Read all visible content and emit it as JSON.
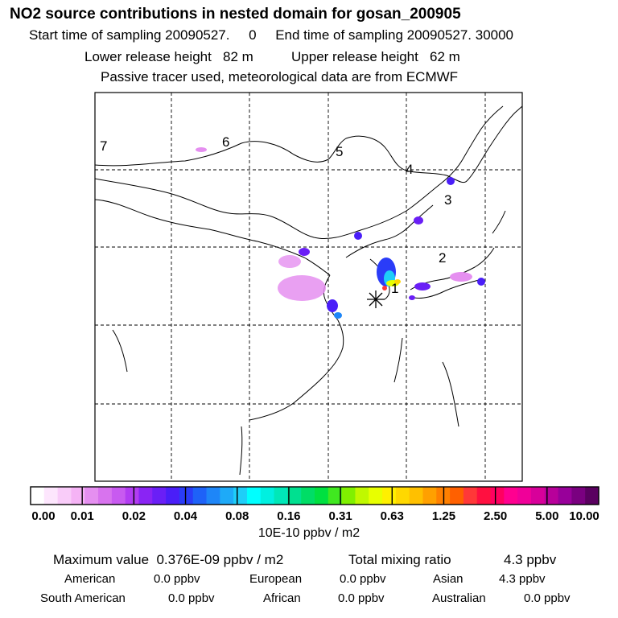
{
  "title": "NO2 source contributions in nested domain for gosan_200905",
  "sampling_start": "Start time of sampling 20090527.     0",
  "sampling_end": "End time of sampling 20090527. 30000",
  "lower_release": "Lower release height   82 m",
  "upper_release": "Upper release height   62 m",
  "tracer_note": "Passive tracer used, meteorological data are from ECMWF",
  "region_labels": [
    "1",
    "2",
    "3",
    "4",
    "5",
    "6",
    "7"
  ],
  "colorbar": {
    "ticks": [
      "0.00",
      "0.01",
      "0.02",
      "0.04",
      "0.08",
      "0.16",
      "0.31",
      "0.63",
      "1.25",
      "2.50",
      "5.00",
      "10.00"
    ],
    "colors": [
      "#ffffff",
      "#fde6fd",
      "#f9ccf9",
      "#f5b3f5",
      "#e58ff0",
      "#d873ee",
      "#c85af0",
      "#b23cf2",
      "#8a24f4",
      "#6a1ff6",
      "#4a1ef8",
      "#2a3cf8",
      "#1e62f8",
      "#1e86f8",
      "#1eaaf8",
      "#1ecef8",
      "#00ffff",
      "#00f0e0",
      "#00e8b8",
      "#00e090",
      "#00dd66",
      "#00e040",
      "#40e820",
      "#80f000",
      "#c0f800",
      "#e8ff00",
      "#fff000",
      "#ffd800",
      "#ffc000",
      "#ffa000",
      "#ff8000",
      "#ff6000",
      "#ff3838",
      "#ff1040",
      "#ff0060",
      "#ff0090",
      "#f00099",
      "#d8009a",
      "#b8009a",
      "#98009a",
      "#7a0080",
      "#5a0060"
    ],
    "unit": "10E-10 ppbv / m2"
  },
  "stats": {
    "maximum": "Maximum value  0.376E-09 ppbv / m2",
    "total": "Total mixing ratio",
    "total_value": "4.3 ppbv"
  },
  "regions": [
    {
      "name": "American",
      "value": "0.0 ppbv"
    },
    {
      "name": "European",
      "value": "0.0 ppbv"
    },
    {
      "name": "Asian",
      "value": "4.3 ppbv"
    },
    {
      "name": "South American",
      "value": "0.0 ppbv"
    },
    {
      "name": "African",
      "value": "0.0 ppbv"
    },
    {
      "name": "Australian",
      "value": "0.0 ppbv"
    }
  ]
}
